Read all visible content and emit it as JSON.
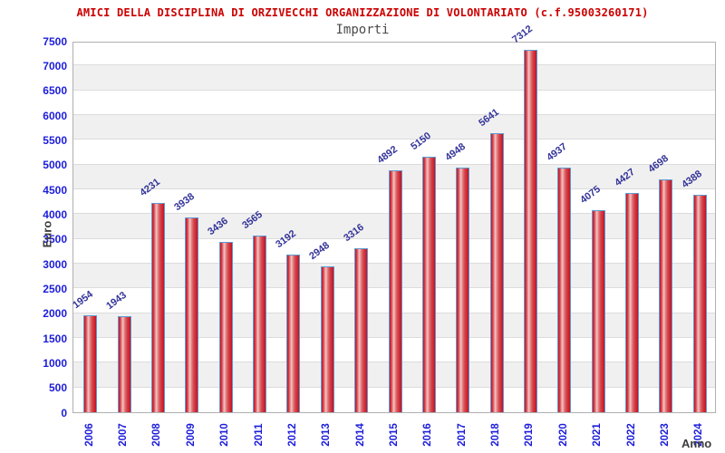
{
  "chart_data": {
    "type": "bar",
    "title": "AMICI DELLA DISCIPLINA DI ORZIVECCHI ORGANIZZAZIONE DI VOLONTARIATO (c.f.95003260171)",
    "subtitle": "Importi",
    "xlabel": "Anno",
    "ylabel": "Euro",
    "categories": [
      "2006",
      "2007",
      "2008",
      "2009",
      "2010",
      "2011",
      "2012",
      "2013",
      "2014",
      "2015",
      "2016",
      "2017",
      "2018",
      "2019",
      "2020",
      "2021",
      "2022",
      "2023",
      "2024"
    ],
    "values": [
      1954,
      1943,
      4231,
      3938,
      3436,
      3565,
      3192,
      2948,
      3316,
      4892,
      5150,
      4948,
      5641,
      7312,
      4937,
      4075,
      4427,
      4698,
      4388
    ],
    "ylim": [
      0,
      7500
    ],
    "ytick_step": 500,
    "grid": "horizontal alternating bands every 500",
    "legend": "none",
    "colors": {
      "title": "#cc0000",
      "subtitle": "#4a4a4a",
      "bar_fill": "#c8101f",
      "bar_highlight": "#f4c3c3",
      "bar_border": "#5e9bd3",
      "tick_labels": "#1c1cdb",
      "value_labels": "#333399",
      "band": "#f0f0f0",
      "gridline": "#dcdcdc",
      "frame": "#b0b0b0",
      "axis_titles": "#3c3c3c"
    }
  }
}
